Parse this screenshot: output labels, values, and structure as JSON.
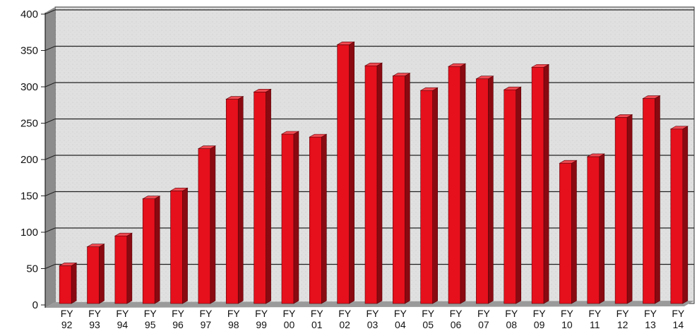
{
  "chart_data": {
    "type": "bar",
    "title": "",
    "xlabel": "",
    "ylabel": "",
    "ylim": [
      0,
      400
    ],
    "yticks": [
      0,
      50,
      100,
      150,
      200,
      250,
      300,
      350,
      400
    ],
    "grid": true,
    "categories": [
      [
        "FY",
        "92"
      ],
      [
        "FY",
        "93"
      ],
      [
        "FY",
        "94"
      ],
      [
        "FY",
        "95"
      ],
      [
        "FY",
        "96"
      ],
      [
        "FY",
        "97"
      ],
      [
        "FY",
        "98"
      ],
      [
        "FY",
        "99"
      ],
      [
        "FY",
        "00"
      ],
      [
        "FY",
        "01"
      ],
      [
        "FY",
        "02"
      ],
      [
        "FY",
        "03"
      ],
      [
        "FY",
        "04"
      ],
      [
        "FY",
        "05"
      ],
      [
        "FY",
        "06"
      ],
      [
        "FY",
        "07"
      ],
      [
        "FY",
        "08"
      ],
      [
        "FY",
        "09"
      ],
      [
        "FY",
        "10"
      ],
      [
        "FY",
        "11"
      ],
      [
        "FY",
        "12"
      ],
      [
        "FY",
        "13"
      ],
      [
        "FY",
        "14"
      ]
    ],
    "values": [
      52,
      78,
      93,
      144,
      155,
      213,
      281,
      291,
      233,
      229,
      356,
      327,
      313,
      293,
      326,
      309,
      294,
      325,
      193,
      202,
      256,
      282,
      240
    ],
    "colors": {
      "bar_front": "#e5101c",
      "bar_side": "#8a0a12",
      "bar_top": "#f04a52",
      "plot_bg": "#e2e2e2",
      "gridline": "#222222"
    }
  }
}
